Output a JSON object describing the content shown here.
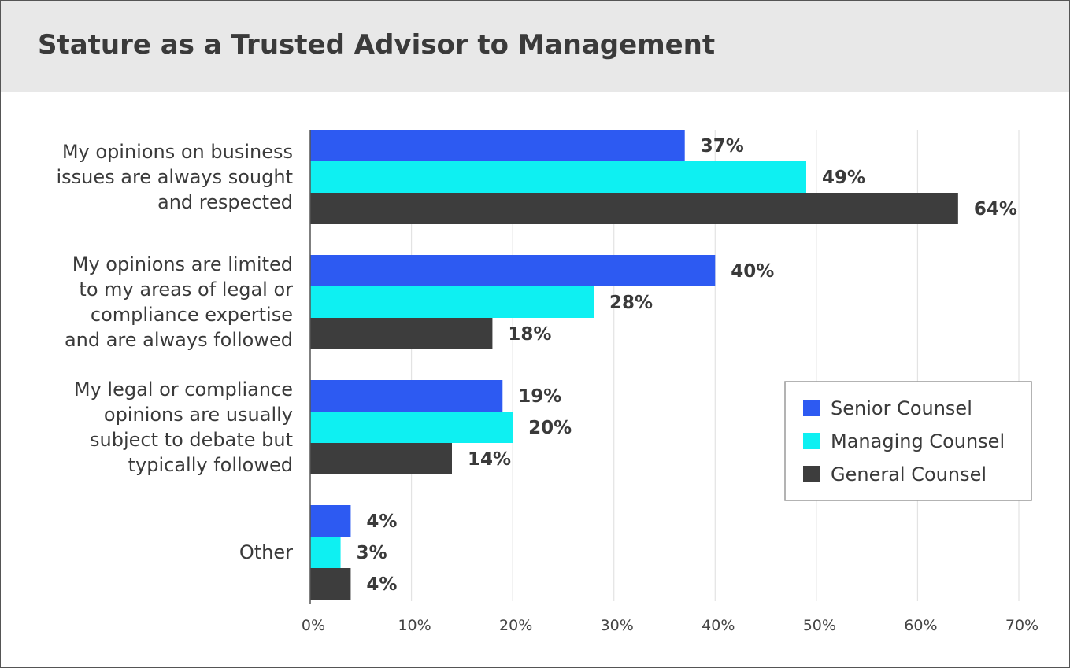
{
  "chart_data": {
    "type": "bar",
    "orientation": "horizontal",
    "title": "Stature as a Trusted Advisor to Management",
    "categories": [
      [
        "My opinions on business",
        "issues are always sought",
        "and respected"
      ],
      [
        "My opinions are limited",
        "to my areas of legal or",
        "compliance expertise",
        "and are always followed"
      ],
      [
        "My legal or compliance",
        "opinions are usually",
        "subject to debate but",
        "typically followed"
      ],
      [
        "Other"
      ]
    ],
    "series": [
      {
        "name": "Senior Counsel",
        "color": "#2d5af2",
        "values": [
          37,
          40,
          19,
          4
        ]
      },
      {
        "name": "Managing Counsel",
        "color": "#0ef0f2",
        "values": [
          49,
          28,
          20,
          3
        ]
      },
      {
        "name": "General Counsel",
        "color": "#3d3d3d",
        "values": [
          64,
          18,
          14,
          4
        ]
      }
    ],
    "value_suffix": "%",
    "xlim": [
      0,
      70
    ],
    "xticks": [
      "0%",
      "10%",
      "20%",
      "30%",
      "40%",
      "50%",
      "60%",
      "70%"
    ],
    "grid": "vertical",
    "legend_position": "right"
  }
}
